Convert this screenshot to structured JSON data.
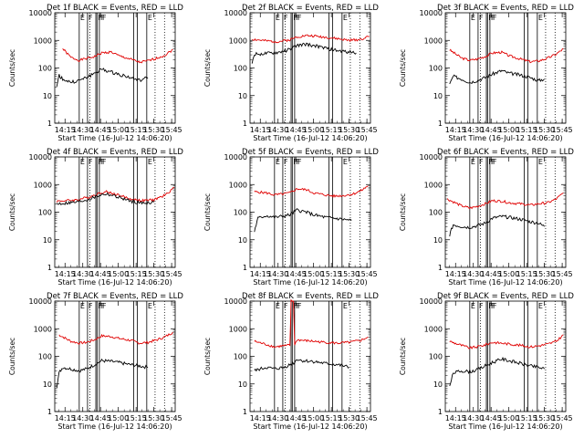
{
  "figure": {
    "xlabel": "Start Time (16-Jul-12 14:06:20)",
    "ylabel": "Counts/sec",
    "colors": {
      "events": "#000000",
      "lld": "#e00000",
      "axes": "#000000"
    }
  },
  "chart_data": [
    {
      "type": "line",
      "title": "Det 1f BLACK = Events, RED = LLD",
      "xlim": [
        "14:06:20",
        "15:48"
      ],
      "ylim": [
        1,
        10000
      ],
      "ylog": true,
      "x_ticks": [
        "14:15",
        "14:30",
        "14:45",
        "15:00",
        "15:15",
        "15:30",
        "15:45"
      ],
      "y_ticks": [
        "1",
        "10",
        "100",
        "1000",
        "10000"
      ],
      "markers": {
        "solid": [
          "14:27",
          "14:34",
          "14:41",
          "14:42",
          "14:44",
          "15:13",
          "15:16",
          "15:24"
        ],
        "dotted": [
          "14:36",
          "15:31",
          "15:39"
        ]
      },
      "marker_labels": [
        "E",
        "F",
        "FF",
        "F",
        "E"
      ],
      "series": [
        {
          "color": "red",
          "x": [
            "14:13",
            "14:20",
            "14:27",
            "14:33",
            "14:40",
            "14:46",
            "14:54",
            "15:00",
            "15:10",
            "15:18",
            "15:25",
            "15:33",
            "15:40",
            "15:46"
          ],
          "values": [
            500,
            240,
            190,
            220,
            260,
            350,
            380,
            280,
            210,
            160,
            180,
            230,
            300,
            470
          ]
        },
        {
          "color": "black",
          "x": [
            "14:08",
            "14:10",
            "14:13",
            "14:20",
            "14:27",
            "14:33",
            "14:40",
            "14:46",
            "14:54",
            "15:00",
            "15:10",
            "15:18",
            "15:25"
          ],
          "values": [
            20,
            55,
            40,
            30,
            35,
            45,
            65,
            90,
            70,
            60,
            45,
            35,
            45
          ]
        }
      ]
    },
    {
      "type": "line",
      "title": "Det 2f BLACK = Events, RED = LLD",
      "xlim": [
        "14:06:20",
        "15:48"
      ],
      "ylim": [
        1,
        10000
      ],
      "ylog": true,
      "x_ticks": [
        "14:15",
        "14:30",
        "14:45",
        "15:00",
        "15:15",
        "15:30",
        "15:45"
      ],
      "y_ticks": [
        "1",
        "10",
        "100",
        "1000",
        "10000"
      ],
      "markers": {
        "solid": [
          "14:27",
          "14:34",
          "14:41",
          "14:42",
          "14:44",
          "15:13",
          "15:16",
          "15:24"
        ],
        "dotted": [
          "14:36",
          "15:31",
          "15:39"
        ]
      },
      "marker_labels": [
        "E",
        "F",
        "FF",
        "F",
        "E"
      ],
      "series": [
        {
          "color": "red",
          "x": [
            "14:08",
            "14:20",
            "14:30",
            "14:40",
            "14:46",
            "14:54",
            "15:00",
            "15:10",
            "15:20",
            "15:30",
            "15:40",
            "15:47"
          ],
          "values": [
            1100,
            950,
            900,
            1050,
            1350,
            1500,
            1450,
            1300,
            1150,
            1000,
            1100,
            1400
          ]
        },
        {
          "color": "black",
          "x": [
            "14:08",
            "14:10",
            "14:20",
            "14:30",
            "14:40",
            "14:46",
            "14:54",
            "15:00",
            "15:10",
            "15:20",
            "15:30",
            "15:36"
          ],
          "values": [
            150,
            320,
            330,
            360,
            470,
            650,
            720,
            650,
            520,
            420,
            380,
            350
          ]
        }
      ]
    },
    {
      "type": "line",
      "title": "Det 3f BLACK = Events, RED = LLD",
      "xlim": [
        "14:06:20",
        "15:48"
      ],
      "ylim": [
        1,
        10000
      ],
      "ylog": true,
      "x_ticks": [
        "14:15",
        "14:30",
        "14:45",
        "15:00",
        "15:15",
        "15:30",
        "15:45"
      ],
      "y_ticks": [
        "1",
        "10",
        "100",
        "1000",
        "10000"
      ],
      "markers": {
        "solid": [
          "14:27",
          "14:34",
          "14:41",
          "14:42",
          "14:44",
          "15:13",
          "15:16",
          "15:24"
        ],
        "dotted": [
          "14:36",
          "15:31",
          "15:39"
        ]
      },
      "marker_labels": [
        "E",
        "F",
        "FF",
        "F",
        "E"
      ],
      "series": [
        {
          "color": "red",
          "x": [
            "14:10",
            "14:20",
            "14:27",
            "14:33",
            "14:40",
            "14:46",
            "14:54",
            "15:00",
            "15:10",
            "15:18",
            "15:25",
            "15:33",
            "15:40",
            "15:46"
          ],
          "values": [
            450,
            230,
            190,
            210,
            260,
            350,
            370,
            280,
            210,
            170,
            180,
            230,
            320,
            500
          ]
        },
        {
          "color": "black",
          "x": [
            "14:10",
            "14:13",
            "14:20",
            "14:27",
            "14:33",
            "14:40",
            "14:46",
            "14:54",
            "15:00",
            "15:10",
            "15:18",
            "15:25",
            "15:30"
          ],
          "values": [
            25,
            50,
            40,
            30,
            35,
            45,
            60,
            80,
            65,
            55,
            45,
            35,
            40
          ]
        }
      ]
    },
    {
      "type": "line",
      "title": "Det 4f BLACK = Events, RED = LLD",
      "xlim": [
        "14:06:20",
        "15:48"
      ],
      "ylim": [
        1,
        10000
      ],
      "ylog": true,
      "x_ticks": [
        "14:15",
        "14:30",
        "14:45",
        "15:00",
        "15:15",
        "15:30",
        "15:45"
      ],
      "y_ticks": [
        "1",
        "10",
        "100",
        "1000",
        "10000"
      ],
      "markers": {
        "solid": [
          "14:27",
          "14:34",
          "14:41",
          "14:42",
          "14:44",
          "15:13",
          "15:16",
          "15:24"
        ],
        "dotted": [
          "14:36",
          "15:31",
          "15:39"
        ]
      },
      "marker_labels": [
        "E",
        "F",
        "FF",
        "F",
        "E"
      ],
      "series": [
        {
          "color": "red",
          "x": [
            "14:08",
            "14:15",
            "14:25",
            "14:35",
            "14:45",
            "14:50",
            "15:00",
            "15:10",
            "15:20",
            "15:30",
            "15:40",
            "15:47"
          ],
          "values": [
            250,
            260,
            280,
            350,
            500,
            550,
            420,
            300,
            260,
            280,
            420,
            800
          ]
        },
        {
          "color": "black",
          "x": [
            "14:08",
            "14:15",
            "14:25",
            "14:35",
            "14:45",
            "14:50",
            "15:00",
            "15:10",
            "15:20",
            "15:30"
          ],
          "values": [
            200,
            210,
            230,
            290,
            420,
            460,
            350,
            250,
            210,
            230
          ]
        }
      ]
    },
    {
      "type": "line",
      "title": "Det 5f BLACK = Events, RED = LLD",
      "xlim": [
        "14:06:20",
        "15:48"
      ],
      "ylim": [
        1,
        10000
      ],
      "ylog": true,
      "x_ticks": [
        "14:15",
        "14:30",
        "14:45",
        "15:00",
        "15:15",
        "15:30",
        "15:45"
      ],
      "y_ticks": [
        "1",
        "10",
        "100",
        "1000",
        "10000"
      ],
      "markers": {
        "solid": [
          "14:27",
          "14:34",
          "14:41",
          "14:42",
          "14:44",
          "15:13",
          "15:16",
          "15:24"
        ],
        "dotted": [
          "14:36",
          "15:31",
          "15:39"
        ]
      },
      "marker_labels": [
        "E",
        "F",
        "FF",
        "F",
        "E"
      ],
      "series": [
        {
          "color": "red",
          "x": [
            "14:10",
            "14:20",
            "14:27",
            "14:33",
            "14:40",
            "14:46",
            "14:54",
            "15:00",
            "15:10",
            "15:18",
            "15:25",
            "15:33",
            "15:40",
            "15:46"
          ],
          "values": [
            550,
            500,
            420,
            450,
            500,
            700,
            650,
            500,
            420,
            380,
            400,
            450,
            600,
            900
          ]
        },
        {
          "color": "black",
          "x": [
            "14:10",
            "14:13",
            "14:20",
            "14:27",
            "14:33",
            "14:40",
            "14:46",
            "14:54",
            "15:00",
            "15:10",
            "15:18",
            "15:25",
            "15:32"
          ],
          "values": [
            20,
            60,
            75,
            65,
            70,
            80,
            120,
            100,
            80,
            65,
            60,
            55,
            50
          ]
        }
      ]
    },
    {
      "type": "line",
      "title": "Det 6f BLACK = Events, RED = LLD",
      "xlim": [
        "14:06:20",
        "15:48"
      ],
      "ylim": [
        1,
        10000
      ],
      "ylog": true,
      "x_ticks": [
        "14:15",
        "14:30",
        "14:45",
        "15:00",
        "15:15",
        "15:30",
        "15:45"
      ],
      "y_ticks": [
        "1",
        "10",
        "100",
        "1000",
        "10000"
      ],
      "markers": {
        "solid": [
          "14:27",
          "14:34",
          "14:41",
          "14:42",
          "14:44",
          "15:13",
          "15:16",
          "15:24"
        ],
        "dotted": [
          "14:36",
          "15:31",
          "15:39"
        ]
      },
      "marker_labels": [
        "E",
        "F",
        "FF",
        "F",
        "E"
      ],
      "series": [
        {
          "color": "red",
          "x": [
            "14:08",
            "14:20",
            "14:27",
            "14:33",
            "14:40",
            "14:46",
            "14:54",
            "15:00",
            "15:10",
            "15:18",
            "15:25",
            "15:33",
            "15:40",
            "15:46"
          ],
          "values": [
            300,
            170,
            140,
            160,
            200,
            260,
            250,
            220,
            200,
            180,
            200,
            220,
            300,
            500
          ]
        },
        {
          "color": "black",
          "x": [
            "14:10",
            "14:13",
            "14:20",
            "14:27",
            "14:33",
            "14:40",
            "14:46",
            "14:54",
            "15:00",
            "15:10",
            "15:18",
            "15:25",
            "15:30"
          ],
          "values": [
            15,
            35,
            30,
            28,
            32,
            40,
            60,
            70,
            65,
            55,
            45,
            40,
            30
          ]
        }
      ]
    },
    {
      "type": "line",
      "title": "Det 7f BLACK = Events, RED = LLD",
      "xlim": [
        "14:06:20",
        "15:48"
      ],
      "ylim": [
        1,
        10000
      ],
      "ylog": true,
      "x_ticks": [
        "14:15",
        "14:30",
        "14:45",
        "15:00",
        "15:15",
        "15:30",
        "15:45"
      ],
      "y_ticks": [
        "1",
        "10",
        "100",
        "1000",
        "10000"
      ],
      "markers": {
        "solid": [
          "14:27",
          "14:34",
          "14:41",
          "14:42",
          "14:44",
          "15:13",
          "15:16",
          "15:24"
        ],
        "dotted": [
          "14:36",
          "15:31",
          "15:39"
        ]
      },
      "marker_labels": [
        "E",
        "F",
        "FF",
        "F",
        "E"
      ],
      "series": [
        {
          "color": "red",
          "x": [
            "14:10",
            "14:20",
            "14:27",
            "14:33",
            "14:40",
            "14:46",
            "14:54",
            "15:00",
            "15:10",
            "15:18",
            "15:25",
            "15:33",
            "15:40",
            "15:46"
          ],
          "values": [
            600,
            350,
            300,
            320,
            400,
            550,
            520,
            450,
            380,
            300,
            320,
            400,
            520,
            750
          ]
        },
        {
          "color": "black",
          "x": [
            "14:08",
            "14:10",
            "14:13",
            "14:20",
            "14:27",
            "14:33",
            "14:40",
            "14:46",
            "14:54",
            "15:00",
            "15:10",
            "15:18",
            "15:25"
          ],
          "values": [
            8,
            25,
            40,
            35,
            30,
            35,
            50,
            70,
            65,
            60,
            50,
            45,
            40
          ]
        }
      ]
    },
    {
      "type": "line",
      "title": "Det 8f BLACK = Events, RED = LLD",
      "xlim": [
        "14:06:20",
        "15:48"
      ],
      "ylim": [
        1,
        10000
      ],
      "ylog": true,
      "x_ticks": [
        "14:15",
        "14:30",
        "14:45",
        "15:00",
        "15:15",
        "15:30",
        "15:45"
      ],
      "y_ticks": [
        "1",
        "10",
        "100",
        "1000",
        "10000"
      ],
      "markers": {
        "solid": [
          "14:27",
          "14:34",
          "14:41",
          "14:42",
          "14:44",
          "15:13",
          "15:16",
          "15:24"
        ],
        "dotted": [
          "14:36",
          "15:31",
          "15:39"
        ]
      },
      "marker_labels": [
        "E",
        "F",
        "FF",
        "F",
        "E"
      ],
      "series": [
        {
          "color": "red",
          "x": [
            "14:10",
            "14:20",
            "14:27",
            "14:35",
            "14:40",
            "14:41",
            "14:43",
            "14:44",
            "14:46",
            "14:50",
            "15:00",
            "15:10",
            "15:20",
            "15:30",
            "15:40",
            "15:46"
          ],
          "values": [
            350,
            270,
            220,
            240,
            250,
            10000,
            10000,
            250,
            400,
            380,
            350,
            320,
            300,
            320,
            380,
            500
          ]
        },
        {
          "color": "black",
          "x": [
            "14:10",
            "14:20",
            "14:27",
            "14:35",
            "14:40",
            "14:44",
            "14:46",
            "14:50",
            "15:00",
            "15:10",
            "15:20",
            "15:30"
          ],
          "values": [
            30,
            40,
            35,
            40,
            50,
            60,
            80,
            70,
            65,
            55,
            50,
            40
          ]
        }
      ]
    },
    {
      "type": "line",
      "title": "Det 9f BLACK = Events, RED = LLD",
      "xlim": [
        "14:06:20",
        "15:48"
      ],
      "ylim": [
        1,
        10000
      ],
      "ylog": true,
      "x_ticks": [
        "14:15",
        "14:30",
        "14:45",
        "15:00",
        "15:15",
        "15:30",
        "15:45"
      ],
      "y_ticks": [
        "1",
        "10",
        "100",
        "1000",
        "10000"
      ],
      "markers": {
        "solid": [
          "14:27",
          "14:34",
          "14:41",
          "14:42",
          "14:44",
          "15:13",
          "15:16",
          "15:24"
        ],
        "dotted": [
          "14:36",
          "15:31",
          "15:39"
        ]
      },
      "marker_labels": [
        "E",
        "F",
        "FF",
        "F",
        "E"
      ],
      "series": [
        {
          "color": "red",
          "x": [
            "14:10",
            "14:20",
            "14:27",
            "14:33",
            "14:40",
            "14:46",
            "14:54",
            "15:00",
            "15:10",
            "15:18",
            "15:25",
            "15:33",
            "15:40",
            "15:46"
          ],
          "values": [
            350,
            250,
            200,
            220,
            260,
            320,
            300,
            280,
            250,
            220,
            240,
            280,
            350,
            600
          ]
        },
        {
          "color": "black",
          "x": [
            "14:10",
            "14:13",
            "14:20",
            "14:27",
            "14:33",
            "14:40",
            "14:46",
            "14:54",
            "15:00",
            "15:10",
            "15:18",
            "15:25",
            "15:30"
          ],
          "values": [
            8,
            25,
            30,
            28,
            32,
            45,
            60,
            80,
            70,
            55,
            45,
            40,
            35
          ]
        }
      ]
    }
  ]
}
